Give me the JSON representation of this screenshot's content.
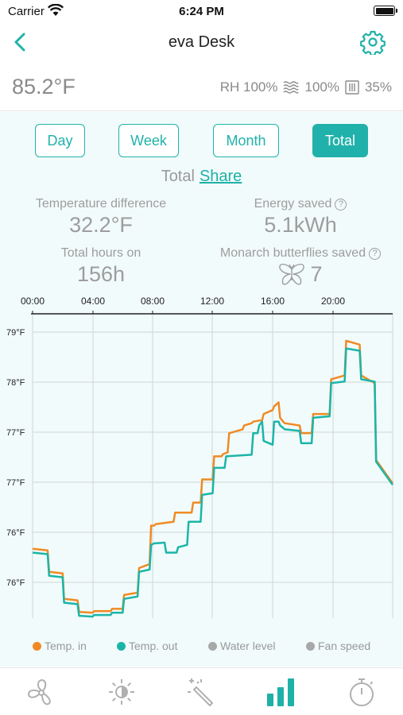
{
  "status_bar": {
    "carrier": "Carrier",
    "time": "6:24 PM"
  },
  "nav": {
    "title": "eva Desk"
  },
  "readings": {
    "temperature": "85.2°F",
    "humidity": "RH 100%",
    "water_level": "100%",
    "fan_speed": "35%"
  },
  "period_tabs": [
    {
      "label": "Day",
      "active": false
    },
    {
      "label": "Week",
      "active": false
    },
    {
      "label": "Month",
      "active": false
    },
    {
      "label": "Total",
      "active": true
    }
  ],
  "summary": {
    "title": "Total",
    "share_label": "Share"
  },
  "stats": {
    "temp_diff_label": "Temperature difference",
    "temp_diff_value": "32.2°F",
    "energy_label": "Energy saved",
    "energy_value": "5.1kWh",
    "hours_label": "Total hours on",
    "hours_value": "156h",
    "butterflies_label": "Monarch butterflies saved",
    "butterflies_value": "7"
  },
  "chart_data": {
    "type": "line",
    "x_ticks": [
      "00:00",
      "04:00",
      "08:00",
      "12:00",
      "16:00",
      "20:00"
    ],
    "y_ticks": [
      "79°F",
      "78°F",
      "77°F",
      "77°F",
      "76°F",
      "76°F"
    ],
    "xlim": [
      0,
      24
    ],
    "ylim": [
      75.35,
      79.3
    ],
    "grid": true,
    "series": [
      {
        "name": "Temp. in",
        "color": "#f08a24",
        "x": [
          0,
          1,
          1.1,
          2,
          2.1,
          3,
          3.1,
          4,
          4.1,
          5.2,
          5.3,
          6,
          6.1,
          7,
          7.1,
          7.8,
          7.9,
          8.1,
          8.2,
          9.4,
          9.5,
          9.8,
          9.9,
          10.6,
          10.7,
          11.2,
          11.3,
          12,
          12.1,
          12.6,
          12.7,
          13,
          13.1,
          14,
          14.1,
          14.6,
          14.7,
          15.3,
          15.4,
          16,
          16.1,
          16.4,
          16.5,
          16.7,
          16.8,
          17.8,
          17.9,
          18.6,
          18.7,
          19.8,
          19.9,
          20.8,
          20.9,
          21.8,
          21.9,
          22.8,
          22.9,
          24
        ],
        "y": [
          76.25,
          76.23,
          75.95,
          75.93,
          75.6,
          75.58,
          75.43,
          75.42,
          75.44,
          75.44,
          75.47,
          75.47,
          75.65,
          75.68,
          76.0,
          76.05,
          76.55,
          76.55,
          76.57,
          76.6,
          76.72,
          76.72,
          76.72,
          76.72,
          76.85,
          76.85,
          77.15,
          77.15,
          77.45,
          77.45,
          77.48,
          77.5,
          77.75,
          77.8,
          77.85,
          77.88,
          77.9,
          77.92,
          78.0,
          78.05,
          78.1,
          78.15,
          77.95,
          77.9,
          77.88,
          77.85,
          77.75,
          77.75,
          78.0,
          78.0,
          78.45,
          78.5,
          78.95,
          78.9,
          78.5,
          78.4,
          77.4,
          77.1
        ]
      },
      {
        "name": "Temp. out",
        "color": "#1bb5a8",
        "x": [
          0,
          1,
          1.1,
          2,
          2.1,
          3,
          3.1,
          4,
          4.1,
          5.2,
          5.3,
          6,
          6.1,
          7,
          7.1,
          7.8,
          7.9,
          8.1,
          8.2,
          8.8,
          8.9,
          9.6,
          9.7,
          10.3,
          10.4,
          11.2,
          11.3,
          12,
          12.1,
          12.8,
          12.9,
          14.6,
          14.7,
          15,
          15.1,
          15.3,
          15.4,
          16,
          16.1,
          16.4,
          16.5,
          16.7,
          16.8,
          17.8,
          17.9,
          18.6,
          18.7,
          19.8,
          19.9,
          20.8,
          20.9,
          21.8,
          21.9,
          22.8,
          22.9,
          24
        ],
        "y": [
          76.2,
          76.18,
          75.9,
          75.88,
          75.55,
          75.53,
          75.38,
          75.37,
          75.39,
          75.39,
          75.42,
          75.42,
          75.6,
          75.63,
          75.95,
          75.98,
          76.3,
          76.32,
          76.32,
          76.33,
          76.2,
          76.2,
          76.27,
          76.3,
          76.6,
          76.6,
          76.95,
          76.97,
          77.3,
          77.3,
          77.45,
          77.47,
          77.75,
          77.75,
          77.85,
          77.9,
          77.65,
          77.6,
          77.9,
          77.9,
          77.85,
          77.82,
          77.8,
          77.78,
          77.62,
          77.62,
          77.95,
          77.97,
          78.4,
          78.42,
          78.85,
          78.82,
          78.45,
          78.42,
          77.38,
          77.08
        ]
      }
    ]
  },
  "legend": [
    {
      "label": "Temp. in",
      "color": "#f08a24"
    },
    {
      "label": "Temp. out",
      "color": "#1bb5a8"
    },
    {
      "label": "Water level",
      "color": "#a8a8a8"
    },
    {
      "label": "Fan speed",
      "color": "#a8a8a8"
    }
  ],
  "tabbar": [
    "fan-icon",
    "brightness-icon",
    "magic-wand-icon",
    "stats-icon",
    "timer-icon"
  ]
}
